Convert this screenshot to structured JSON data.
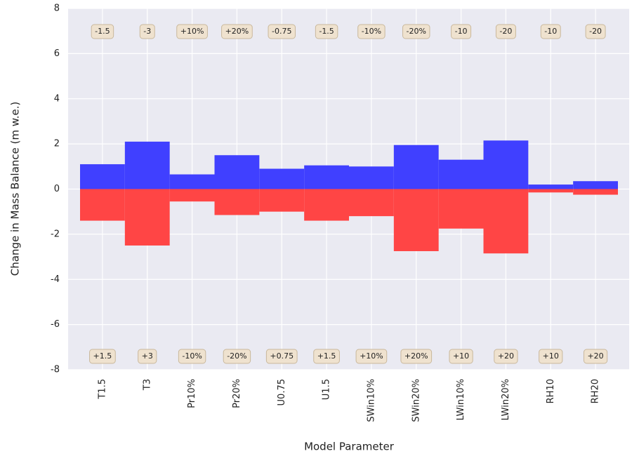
{
  "chart_data": {
    "type": "bar",
    "x_label": "Model Parameter",
    "y_label": "Change in Mass Balance (m w.e.)",
    "categories": [
      "T1.5",
      "T3",
      "Pr10%",
      "Pr20%",
      "U0.75",
      "U1.5",
      "SWin10%",
      "SWin20%",
      "LWin10%",
      "LWin20%",
      "RH10",
      "RH20"
    ],
    "series": [
      {
        "color": "#4040ff",
        "values": [
          1.1,
          2.1,
          0.65,
          1.5,
          0.9,
          1.05,
          1.0,
          1.95,
          1.3,
          2.15,
          0.2,
          0.35
        ],
        "labels": [
          "-1.5",
          "-3",
          "+10%",
          "+20%",
          "-0.75",
          "-1.5",
          "-10%",
          "-20%",
          "-10",
          "-20",
          "-10",
          "-20"
        ]
      },
      {
        "color": "#ff4545",
        "values": [
          -1.4,
          -2.5,
          -0.55,
          -1.15,
          -1.0,
          -1.4,
          -1.2,
          -2.75,
          -1.75,
          -2.85,
          -0.15,
          -0.25
        ],
        "labels": [
          "+1.5",
          "+3",
          "-10%",
          "-20%",
          "+0.75",
          "+1.5",
          "+10%",
          "+20%",
          "+10",
          "+20",
          "+10",
          "+20"
        ]
      }
    ],
    "ylim": [
      -8,
      8
    ],
    "yticks": [
      -8,
      -6,
      -4,
      -2,
      0,
      2,
      4,
      6,
      8
    ],
    "grid": true
  }
}
